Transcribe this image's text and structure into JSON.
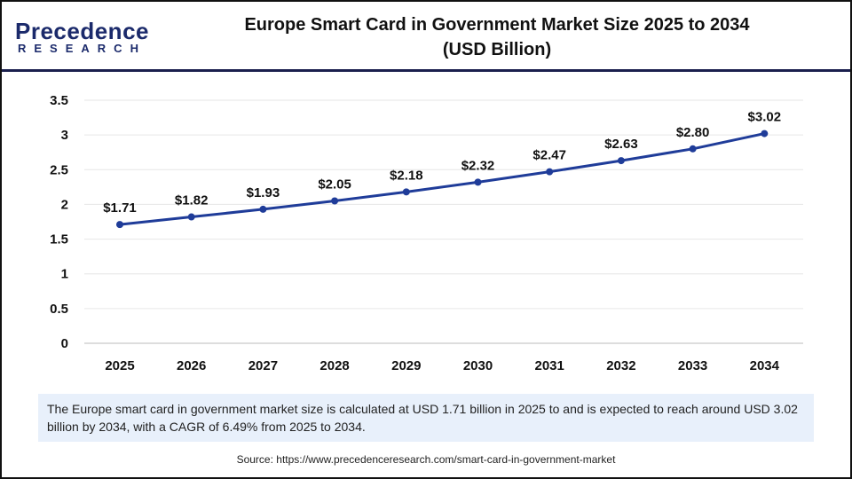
{
  "logo": {
    "line1": "Precedence",
    "line2": "RESEARCH"
  },
  "header": {
    "title_line1": "Europe Smart Card in Government Market Size 2025 to 2034",
    "title_line2": "(USD Billion)"
  },
  "chart_data": {
    "type": "line",
    "title": "Europe Smart Card in Government Market Size 2025 to 2034 (USD Billion)",
    "categories": [
      "2025",
      "2026",
      "2027",
      "2028",
      "2029",
      "2030",
      "2031",
      "2032",
      "2033",
      "2034"
    ],
    "values": [
      1.71,
      1.82,
      1.93,
      2.05,
      2.18,
      2.32,
      2.47,
      2.63,
      2.8,
      3.02
    ],
    "data_labels": [
      "$1.71",
      "$1.82",
      "$1.93",
      "$2.05",
      "$2.18",
      "$2.32",
      "$2.47",
      "$2.63",
      "$2.80",
      "$3.02"
    ],
    "yticks": [
      "0",
      "0.5",
      "1",
      "1.5",
      "2",
      "2.5",
      "3",
      "3.5"
    ],
    "ylim": [
      0,
      3.5
    ],
    "grid": true,
    "color": "#1f3c99"
  },
  "info": {
    "text": "The Europe smart card in government market size is calculated at USD 1.71 billion in 2025 to and is expected to reach around USD 3.02 billion by 2034, with a CAGR of 6.49% from 2025 to 2034."
  },
  "source": {
    "text": "Source: https://www.precedenceresearch.com/smart-card-in-government-market"
  }
}
